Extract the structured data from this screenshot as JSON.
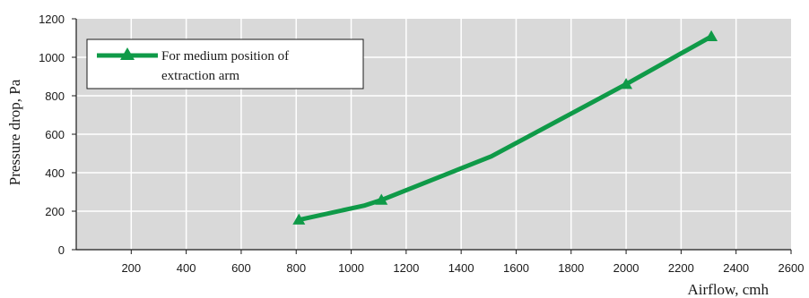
{
  "chart_data": {
    "type": "line",
    "xlabel": "Airflow, cmh",
    "ylabel": "Pressure drop, Pa",
    "xlim": [
      0,
      2600
    ],
    "ylim": [
      0,
      1200
    ],
    "xticks": [
      200,
      400,
      600,
      800,
      1000,
      1200,
      1400,
      1600,
      1800,
      2000,
      2200,
      2400,
      2600
    ],
    "yticks": [
      0,
      200,
      400,
      600,
      800,
      1000,
      1200
    ],
    "grid": true,
    "legend_position": "top-left",
    "legend_lines": [
      "For medium position of",
      "extraction arm"
    ],
    "series": [
      {
        "name": "For medium position of extraction arm",
        "color": "#0f9a48",
        "marker": "triangle",
        "points": [
          {
            "x": 810,
            "y": 155
          },
          {
            "x": 1050,
            "y": 230
          },
          {
            "x": 1110,
            "y": 258
          },
          {
            "x": 1510,
            "y": 485
          },
          {
            "x": 2000,
            "y": 860
          },
          {
            "x": 2310,
            "y": 1108
          }
        ],
        "marker_indices": [
          0,
          2,
          4,
          5
        ]
      }
    ],
    "colors": {
      "plot_background": "#d9d9d9",
      "grid": "#ffffff",
      "axis": "#1a1a1a"
    }
  }
}
